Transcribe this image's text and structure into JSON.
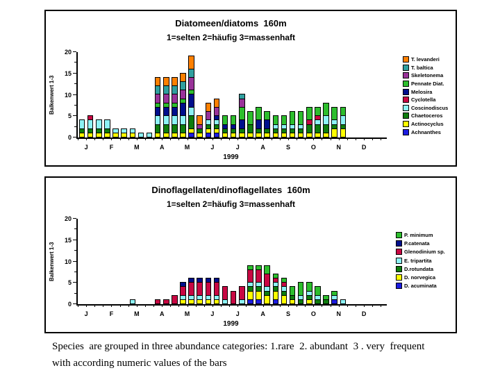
{
  "page": {
    "caption_line1": "Species  are grouped in three abundance categories: 1.rare  2. abundant  3 . very  frequent",
    "caption_line2": "with according numeric values of the bars"
  },
  "chart_data": [
    {
      "type": "bar",
      "stacked": true,
      "title": "Diatomeen/diatoms  160m",
      "subtitle": "1=selten 2=häufig 3=massenhaft",
      "ylabel": "Balkenwert 1-3",
      "xlabel": "1999",
      "ylim": [
        0,
        20
      ],
      "yticks": [
        0,
        5,
        10,
        15,
        20
      ],
      "grid": false,
      "legend_position": "right",
      "categories": [
        "J",
        "F",
        "M",
        "A",
        "M",
        "J",
        "J",
        "A",
        "S",
        "O",
        "N",
        "D"
      ],
      "slots_per_month": 3,
      "series": [
        {
          "name": "T. levanderi",
          "color": "#FF8000"
        },
        {
          "name": "T. baltica",
          "color": "#309F9F"
        },
        {
          "name": "Skeletonema",
          "color": "#993399"
        },
        {
          "name": "Pennate Diat.",
          "color": "#2DBE2D"
        },
        {
          "name": "Melosira",
          "color": "#000F8C"
        },
        {
          "name": "Cyclotella",
          "color": "#C80743"
        },
        {
          "name": "Coscinodiscus",
          "color": "#8DF3F6"
        },
        {
          "name": "Chaetoceros",
          "color": "#0E7C0E"
        },
        {
          "name": "Actinocyclus",
          "color": "#FFFF00"
        },
        {
          "name": "Achnanthes",
          "color": "#1C1CE0"
        }
      ],
      "bars": [
        {
          "slot": 0,
          "values": [
            0,
            0,
            0,
            0,
            0,
            0,
            2,
            1,
            1,
            0
          ]
        },
        {
          "slot": 1,
          "values": [
            0,
            0,
            0,
            0,
            0,
            1,
            2,
            1,
            1,
            0
          ]
        },
        {
          "slot": 2,
          "values": [
            0,
            0,
            0,
            0,
            0,
            0,
            2,
            1,
            1,
            0
          ]
        },
        {
          "slot": 3,
          "values": [
            0,
            0,
            0,
            0,
            0,
            0,
            2,
            1,
            1,
            0
          ]
        },
        {
          "slot": 4,
          "values": [
            0,
            0,
            0,
            0,
            0,
            0,
            1,
            0,
            1,
            0
          ]
        },
        {
          "slot": 5,
          "values": [
            0,
            0,
            0,
            0,
            0,
            0,
            1,
            0,
            1,
            0
          ]
        },
        {
          "slot": 6,
          "values": [
            0,
            0,
            0,
            0,
            0,
            0,
            1,
            0,
            1,
            0
          ]
        },
        {
          "slot": 7,
          "values": [
            0,
            0,
            0,
            0,
            0,
            0,
            1,
            0,
            0,
            0
          ]
        },
        {
          "slot": 8,
          "values": [
            0,
            0,
            0,
            0,
            0,
            0,
            1,
            0,
            0,
            0
          ]
        },
        {
          "slot": 9,
          "values": [
            2,
            2,
            2,
            1,
            2,
            0,
            2,
            2,
            1,
            0
          ]
        },
        {
          "slot": 10,
          "values": [
            2,
            2,
            2,
            1,
            2,
            0,
            2,
            2,
            1,
            0
          ]
        },
        {
          "slot": 11,
          "values": [
            2,
            2,
            2,
            1,
            2,
            0,
            2,
            2,
            1,
            0
          ]
        },
        {
          "slot": 12,
          "values": [
            2,
            2,
            2,
            1,
            3,
            0,
            2,
            2,
            1,
            0
          ]
        },
        {
          "slot": 13,
          "values": [
            3,
            2,
            3,
            1,
            3,
            0,
            2,
            3,
            1,
            1
          ]
        },
        {
          "slot": 14,
          "values": [
            2,
            0,
            1,
            0,
            0,
            0,
            0,
            1,
            1,
            0
          ]
        },
        {
          "slot": 15,
          "values": [
            2,
            0,
            2,
            0,
            0,
            0,
            1,
            1,
            1,
            1
          ]
        },
        {
          "slot": 16,
          "values": [
            2,
            0,
            2,
            0,
            1,
            0,
            1,
            1,
            1,
            1
          ]
        },
        {
          "slot": 17,
          "values": [
            0,
            0,
            0,
            2,
            1,
            0,
            0,
            1,
            1,
            0
          ]
        },
        {
          "slot": 18,
          "values": [
            0,
            0,
            0,
            2,
            1,
            0,
            0,
            1,
            1,
            0
          ]
        },
        {
          "slot": 19,
          "values": [
            0,
            1,
            2,
            3,
            2,
            0,
            0,
            1,
            1,
            0
          ]
        },
        {
          "slot": 20,
          "values": [
            0,
            0,
            0,
            3,
            0,
            0,
            0,
            2,
            1,
            0
          ]
        },
        {
          "slot": 21,
          "values": [
            0,
            0,
            0,
            3,
            2,
            0,
            0,
            1,
            1,
            0
          ]
        },
        {
          "slot": 22,
          "values": [
            0,
            0,
            0,
            2,
            2,
            0,
            0,
            1,
            1,
            0
          ]
        },
        {
          "slot": 23,
          "values": [
            0,
            0,
            0,
            2,
            0,
            0,
            1,
            1,
            1,
            0
          ]
        },
        {
          "slot": 24,
          "values": [
            0,
            0,
            0,
            2,
            0,
            0,
            1,
            1,
            1,
            0
          ]
        },
        {
          "slot": 25,
          "values": [
            0,
            0,
            0,
            3,
            0,
            0,
            1,
            1,
            1,
            0
          ]
        },
        {
          "slot": 26,
          "values": [
            0,
            0,
            0,
            3,
            0,
            0,
            1,
            1,
            1,
            0
          ]
        },
        {
          "slot": 27,
          "values": [
            0,
            0,
            0,
            3,
            0,
            1,
            0,
            2,
            1,
            0
          ]
        },
        {
          "slot": 28,
          "values": [
            0,
            0,
            0,
            2,
            0,
            1,
            1,
            2,
            1,
            0
          ]
        },
        {
          "slot": 29,
          "values": [
            0,
            0,
            0,
            3,
            0,
            0,
            2,
            2,
            1,
            0
          ]
        },
        {
          "slot": 30,
          "values": [
            0,
            0,
            0,
            3,
            0,
            0,
            1,
            1,
            2,
            0
          ]
        },
        {
          "slot": 31,
          "values": [
            0,
            0,
            0,
            2,
            0,
            0,
            2,
            1,
            2,
            0
          ]
        }
      ]
    },
    {
      "type": "bar",
      "stacked": true,
      "title": "Dinoflagellaten/dinoflagellates  160m",
      "subtitle": "1=selten 2=häufig 3=massenhaft",
      "ylabel": "Balkenwert 1-3",
      "xlabel": "1999",
      "ylim": [
        0,
        20
      ],
      "yticks": [
        0,
        5,
        10,
        15,
        20
      ],
      "grid": false,
      "legend_position": "right",
      "categories": [
        "J",
        "F",
        "M",
        "A",
        "M",
        "J",
        "J",
        "A",
        "S",
        "O",
        "N",
        "D"
      ],
      "slots_per_month": 3,
      "series": [
        {
          "name": "P. minimum",
          "color": "#2DBE2D"
        },
        {
          "name": "P.catenata",
          "color": "#000F8C"
        },
        {
          "name": "Glenodinium sp.",
          "color": "#C80743"
        },
        {
          "name": "E. tripartita",
          "color": "#8DF3F6"
        },
        {
          "name": "D.rotundata",
          "color": "#0E7C0E"
        },
        {
          "name": "D. norvegica",
          "color": "#FFFF00"
        },
        {
          "name": "D. acuminata",
          "color": "#1C1CE0"
        }
      ],
      "bars": [
        {
          "slot": 6,
          "values": [
            0,
            0,
            0,
            1,
            0,
            0,
            0
          ]
        },
        {
          "slot": 9,
          "values": [
            0,
            0,
            1,
            0,
            0,
            0,
            0
          ]
        },
        {
          "slot": 10,
          "values": [
            0,
            0,
            1,
            0,
            0,
            0,
            0
          ]
        },
        {
          "slot": 11,
          "values": [
            0,
            0,
            2,
            0,
            0,
            0,
            0
          ]
        },
        {
          "slot": 12,
          "values": [
            0,
            1,
            2,
            1,
            0,
            1,
            0
          ]
        },
        {
          "slot": 13,
          "values": [
            0,
            1,
            3,
            1,
            0,
            1,
            0
          ]
        },
        {
          "slot": 14,
          "values": [
            0,
            1,
            3,
            1,
            0,
            1,
            0
          ]
        },
        {
          "slot": 15,
          "values": [
            0,
            1,
            3,
            1,
            0,
            1,
            0
          ]
        },
        {
          "slot": 16,
          "values": [
            0,
            1,
            3,
            1,
            0,
            1,
            0
          ]
        },
        {
          "slot": 17,
          "values": [
            0,
            0,
            3,
            1,
            0,
            0,
            0
          ]
        },
        {
          "slot": 18,
          "values": [
            0,
            0,
            3,
            0,
            0,
            0,
            0
          ]
        },
        {
          "slot": 19,
          "values": [
            0,
            0,
            3,
            1,
            0,
            0,
            0
          ]
        },
        {
          "slot": 20,
          "values": [
            1,
            0,
            3,
            1,
            1,
            2,
            1
          ]
        },
        {
          "slot": 21,
          "values": [
            1,
            0,
            3,
            1,
            1,
            2,
            1
          ]
        },
        {
          "slot": 22,
          "values": [
            2,
            0,
            3,
            1,
            1,
            2,
            0
          ]
        },
        {
          "slot": 23,
          "values": [
            1,
            0,
            1,
            1,
            1,
            2,
            1
          ]
        },
        {
          "slot": 24,
          "values": [
            1,
            0,
            1,
            1,
            1,
            2,
            0
          ]
        },
        {
          "slot": 25,
          "values": [
            2,
            0,
            0,
            0,
            1,
            1,
            0
          ]
        },
        {
          "slot": 26,
          "values": [
            3,
            0,
            0,
            1,
            1,
            0,
            0
          ]
        },
        {
          "slot": 27,
          "values": [
            2,
            0,
            0,
            1,
            1,
            1,
            0
          ]
        },
        {
          "slot": 28,
          "values": [
            2,
            0,
            0,
            1,
            1,
            0,
            0
          ]
        },
        {
          "slot": 29,
          "values": [
            1,
            0,
            0,
            0,
            1,
            0,
            0
          ]
        },
        {
          "slot": 30,
          "values": [
            1,
            0,
            0,
            1,
            0,
            0,
            1
          ]
        },
        {
          "slot": 31,
          "values": [
            0,
            0,
            0,
            1,
            0,
            0,
            0
          ]
        }
      ]
    }
  ]
}
